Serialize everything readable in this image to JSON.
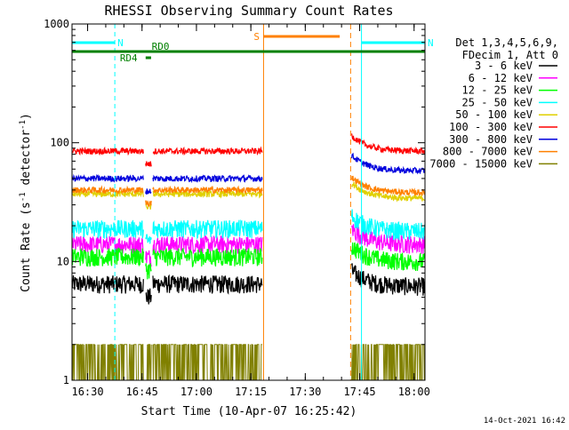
{
  "chart_data": {
    "type": "line",
    "title": "RHESSI Observing Summary Count Rates",
    "xlabel": "Start Time (10-Apr-07 16:25:42)",
    "ylabel_main": "Count Rate (s",
    "ylabel_sup1": "-1",
    "ylabel_mid": " detector",
    "ylabel_sup2": "-1",
    "ylabel_end": ")",
    "y_scale": "log",
    "ylim": [
      1,
      1000
    ],
    "xlim": [
      "16:25:42",
      "18:03:00"
    ],
    "x_ticks": [
      "16:30",
      "16:45",
      "17:00",
      "17:15",
      "17:30",
      "17:45",
      "18:00"
    ],
    "y_ticks": [
      {
        "value": 1,
        "label": "1"
      },
      {
        "value": 10,
        "label": "10"
      },
      {
        "value": 100,
        "label": "100"
      },
      {
        "value": 1000,
        "label": "1000"
      }
    ],
    "grid": false,
    "legend_placement": "right",
    "legend_header": [
      "Det 1,3,4,5,6,9,",
      "FDecim 1, Att 0"
    ],
    "series": [
      {
        "name": "3 - 6 keV",
        "color": "#000000",
        "level_before": 6.5,
        "level_after": 6.2
      },
      {
        "name": "6 - 12 keV",
        "color": "#ff00ff",
        "level_before": 14,
        "level_after": 14
      },
      {
        "name": "12 - 25 keV",
        "color": "#00ff00",
        "level_before": 11,
        "level_after": 10
      },
      {
        "name": "25 - 50 keV",
        "color": "#00ffff",
        "level_before": 19,
        "level_after": 18
      },
      {
        "name": "50 - 100 keV",
        "color": "#e0d000",
        "level_before": 37,
        "level_after": 34
      },
      {
        "name": "100 - 300 keV",
        "color": "#ff0000",
        "level_before": 85,
        "level_after": 85
      },
      {
        "name": "300 - 800 keV",
        "color": "#0000dd",
        "level_before": 50,
        "level_after": 58
      },
      {
        "name": "800 - 7000 keV",
        "color": "#ff8000",
        "level_before": 40,
        "level_after": 38
      },
      {
        "name": "7000 - 15000 keV",
        "color": "#808000",
        "level_before": 1.5,
        "level_after": 1.5
      }
    ],
    "data_gaps": [
      {
        "start": "17:18:30",
        "end": "17:42:30"
      }
    ],
    "annotations": [
      {
        "label": "N",
        "color": "#00ffff",
        "start": "16:25:42",
        "end": "16:37:30"
      },
      {
        "label": "N",
        "color": "#00ffff",
        "start": "17:45:30",
        "end": "18:03:00"
      },
      {
        "label": "S",
        "color": "#ff8000",
        "start": "17:18:30",
        "end": "17:39:30"
      },
      {
        "label": "RD0",
        "color": "#008000",
        "start": "16:25:42",
        "end": "18:03:00"
      },
      {
        "label": "RD4",
        "color": "#008000",
        "start": "16:46:00",
        "end": "16:47:30"
      }
    ],
    "timestamp": "14-Oct-2021 16:42"
  }
}
